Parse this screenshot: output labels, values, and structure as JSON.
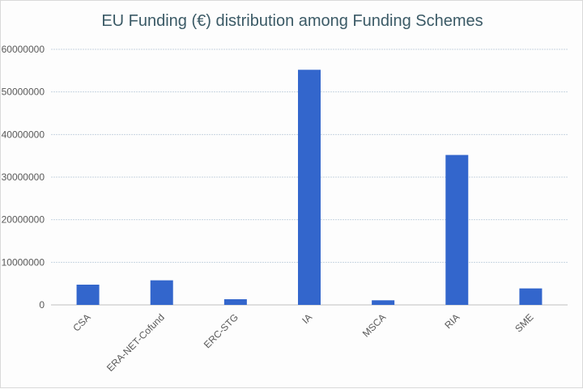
{
  "chart_data": {
    "type": "bar",
    "title": "EU Funding (€) distribution among Funding Schemes",
    "xlabel": "",
    "ylabel": "",
    "categories": [
      "CSA",
      "ERA-NET-Cofund",
      "ERC-STG",
      "IA",
      "MSCA",
      "RIA",
      "SME"
    ],
    "values": [
      4750000,
      5770000,
      1330000,
      55200000,
      1080000,
      35200000,
      3870000
    ],
    "ylim": [
      0,
      60000000
    ],
    "yticks": [
      "0",
      "10000000",
      "20000000",
      "30000000",
      "40000000",
      "50000000",
      "60000000"
    ],
    "grid": true,
    "legend": "none",
    "bar_color": "#3366cc",
    "grid_color": "#c6d4e0"
  }
}
